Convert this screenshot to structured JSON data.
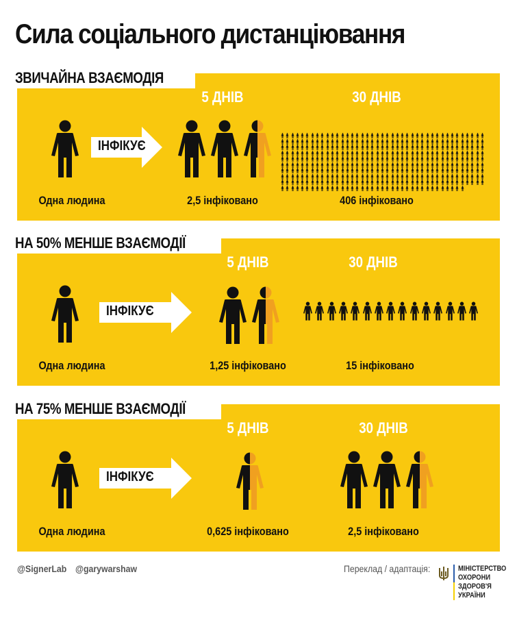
{
  "title": "Сила соціального дистанціювання",
  "colors": {
    "panel": "#F9C80E",
    "person": "#111111",
    "partial_person": "#F0A020",
    "arrow": "#FFFFFF"
  },
  "arrow_label": "ІНФІКУЄ",
  "panels": [
    {
      "heading": "ЗВИЧАЙНА ВЗАЄМОДІЯ",
      "source_label": "Одна людина",
      "day5": {
        "label": "5 ДНІВ",
        "count": 2.5,
        "caption": "2,5 інфіковано"
      },
      "day30": {
        "label": "30 ДНІВ",
        "count": 406,
        "caption": "406 інфіковано"
      }
    },
    {
      "heading": "НА 50% МЕНШЕ ВЗАЄМОДІЇ",
      "source_label": "Одна людина",
      "day5": {
        "label": "5 ДНІВ",
        "count": 1.25,
        "caption": "1,25 інфіковано"
      },
      "day30": {
        "label": "30 ДНІВ",
        "count": 15,
        "caption": "15 інфіковано"
      }
    },
    {
      "heading": "НА 75% МЕНШЕ ВЗАЄМОДІЇ",
      "source_label": "Одна людина",
      "day5": {
        "label": "5 ДНІВ",
        "count": 0.625,
        "caption": "0,625 інфіковано"
      },
      "day30": {
        "label": "30 ДНІВ",
        "count": 2.5,
        "caption": "2,5 інфіковано"
      }
    }
  ],
  "footer": {
    "credit1": "@SignerLab",
    "credit2": "@garywarshaw",
    "translation": "Переклад / адаптація:",
    "ministry": [
      "МІНІСТЕРСТВО",
      "ОХОРОНИ",
      "ЗДОРОВ'Я",
      "УКРАЇНИ"
    ],
    "emblem_icon": "trident-icon"
  }
}
